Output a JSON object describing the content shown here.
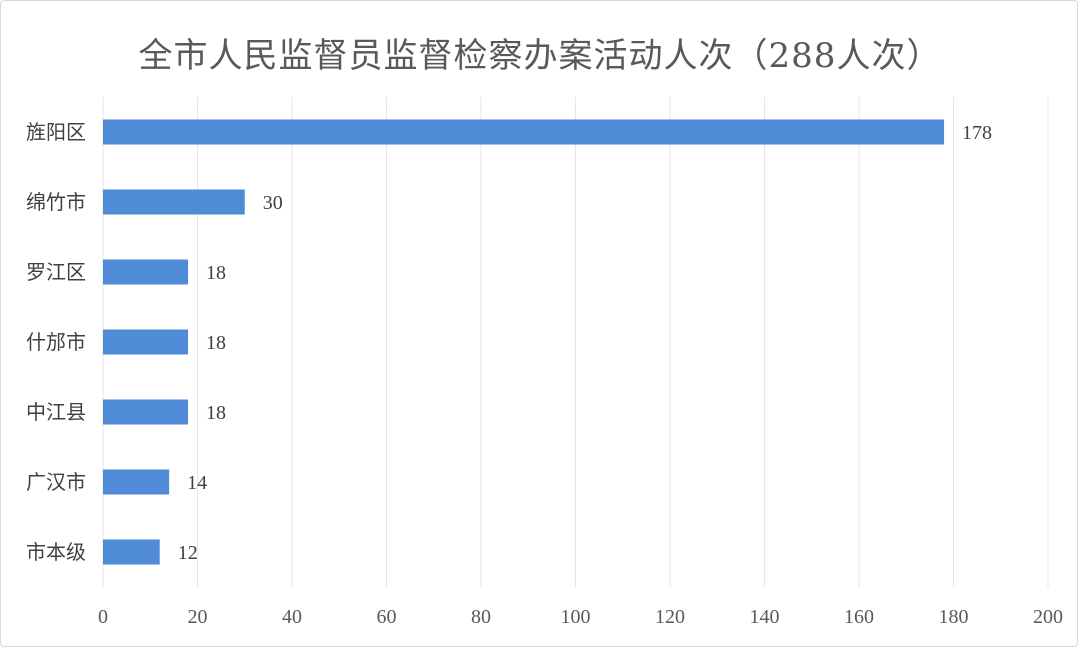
{
  "chart_data": {
    "type": "bar",
    "orientation": "horizontal",
    "title": "全市人民监督员监督检察办案活动人次（288人次）",
    "categories": [
      "旌阳区",
      "绵竹市",
      "罗江区",
      "什邡市",
      "中江县",
      "广汉市",
      "市本级"
    ],
    "values": [
      178,
      30,
      18,
      18,
      18,
      14,
      12
    ],
    "xlim": [
      0,
      200
    ],
    "x_ticks": [
      0,
      20,
      40,
      60,
      80,
      100,
      120,
      140,
      160,
      180,
      200
    ],
    "grid": true,
    "legend": false,
    "data_labels": true,
    "bar_color": "#4f8bd6",
    "grid_color": "#e6e6e6"
  }
}
